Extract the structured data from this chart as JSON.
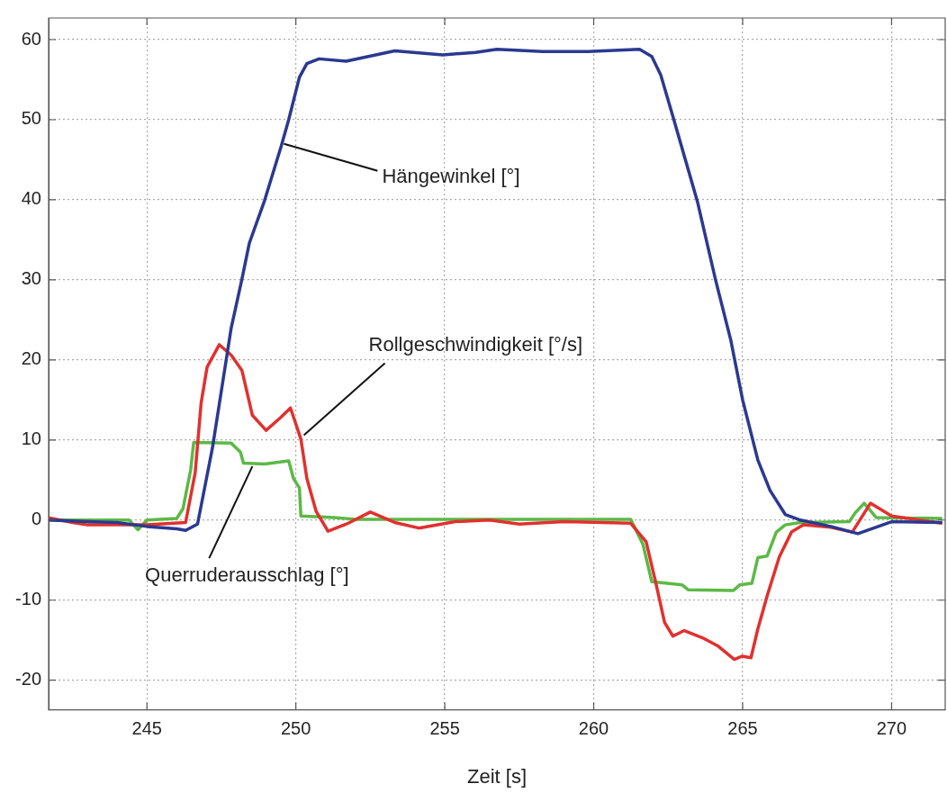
{
  "chart_data": {
    "type": "line",
    "xlabel": "Zeit [s]",
    "xlim": [
      241.7,
      271.8
    ],
    "xticks": [
      245,
      250,
      255,
      260,
      265,
      270
    ],
    "ylim": [
      -23.7,
      62.7
    ],
    "yticks": [
      -20,
      -10,
      0,
      10,
      20,
      30,
      40,
      50,
      60
    ],
    "grid": true,
    "legend": false,
    "marker": "none",
    "line_style": "solid",
    "annotations": [
      {
        "text": "Hängewinkel [°]",
        "x": 249.6,
        "y": 47
      },
      {
        "text": "Rollgeschwindigkeit [°/s]",
        "x": 250.27,
        "y": 10.6
      },
      {
        "text": "Querruderausschlag [°]",
        "x": 248.54,
        "y": 6.7
      }
    ],
    "series": [
      {
        "color": "#2b3990",
        "x": [
          241.7,
          243,
          244,
          245,
          246,
          246.3,
          246.7,
          247.2,
          247.83,
          248.19,
          248.44,
          248.95,
          249.51,
          249.76,
          250.12,
          250.37,
          250.78,
          251.69,
          253.32,
          254.94,
          256.03,
          256.75,
          258.28,
          259.81,
          261.54,
          261.95,
          262.25,
          262.66,
          263.48,
          264.09,
          264.6,
          265.0,
          265.51,
          265.92,
          266.43,
          266.94,
          267.96,
          268.87,
          270.0,
          271.7
        ],
        "values": [
          0,
          -0.2,
          -0.3,
          -0.8,
          -1.1,
          -1.3,
          -0.5,
          9,
          24,
          30.1,
          34.6,
          39.9,
          46.7,
          50,
          55.3,
          57,
          57.6,
          57.3,
          58.6,
          58.1,
          58.4,
          58.8,
          58.5,
          58.5,
          58.8,
          57.9,
          55.6,
          50.4,
          39.8,
          30,
          22.5,
          15,
          7.5,
          3.7,
          0.7,
          0,
          -0.8,
          -1.7,
          -0.2,
          -0.3
        ]
      },
      {
        "color": "#e0312f",
        "x": [
          241.7,
          242.5,
          243,
          244,
          245,
          246.3,
          246.62,
          246.82,
          247.02,
          247.43,
          247.83,
          248.19,
          248.54,
          249.0,
          249.46,
          249.82,
          250.17,
          250.37,
          250.68,
          251.08,
          251.7,
          252.5,
          253.32,
          254.13,
          255.35,
          256.5,
          257.5,
          259,
          261.24,
          261.76,
          262.07,
          262.38,
          262.66,
          263.04,
          263.65,
          264.16,
          264.72,
          264.98,
          265.28,
          265.51,
          265.82,
          266.23,
          266.64,
          267.04,
          267.96,
          268.68,
          269.29,
          270.0,
          271.7
        ],
        "values": [
          0.3,
          -0.3,
          -0.6,
          -0.6,
          -0.6,
          -0.3,
          5.9,
          14.6,
          19.1,
          21.9,
          20.6,
          18.7,
          13.1,
          11.2,
          12.7,
          14,
          10.1,
          5.2,
          1.1,
          -1.4,
          -0.5,
          1,
          -0.3,
          -1,
          -0.2,
          0,
          -0.5,
          -0.2,
          -0.4,
          -2.7,
          -7.6,
          -12.8,
          -14.5,
          -13.8,
          -14.7,
          -15.7,
          -17.4,
          -17,
          -17.2,
          -13.6,
          -9.5,
          -4.6,
          -1.5,
          -0.6,
          -0.9,
          -1.5,
          2.1,
          0.5,
          -0.4
        ]
      },
      {
        "color": "#5cb946",
        "x": [
          241.7,
          244.4,
          244.7,
          245,
          246.0,
          246.21,
          246.47,
          246.57,
          247.83,
          248.14,
          248.24,
          248.95,
          249.76,
          249.92,
          250.12,
          250.17,
          251.29,
          252,
          261.24,
          261.65,
          261.95,
          262.97,
          263.17,
          264.69,
          264.9,
          265.31,
          265.51,
          265.82,
          266.13,
          266.43,
          266.94,
          268.58,
          268.78,
          269.08,
          269.49,
          271.7
        ],
        "values": [
          0,
          0,
          -1.2,
          0,
          0.2,
          1.4,
          6.3,
          9.7,
          9.6,
          8.5,
          7.1,
          7,
          7.4,
          5.2,
          4,
          0.5,
          0.3,
          0.1,
          0.1,
          -3,
          -7.7,
          -8.1,
          -8.7,
          -8.8,
          -8.1,
          -7.9,
          -4.7,
          -4.5,
          -1.5,
          -0.6,
          -0.3,
          -0.2,
          0.9,
          2.1,
          0.3,
          0.2
        ]
      }
    ]
  }
}
